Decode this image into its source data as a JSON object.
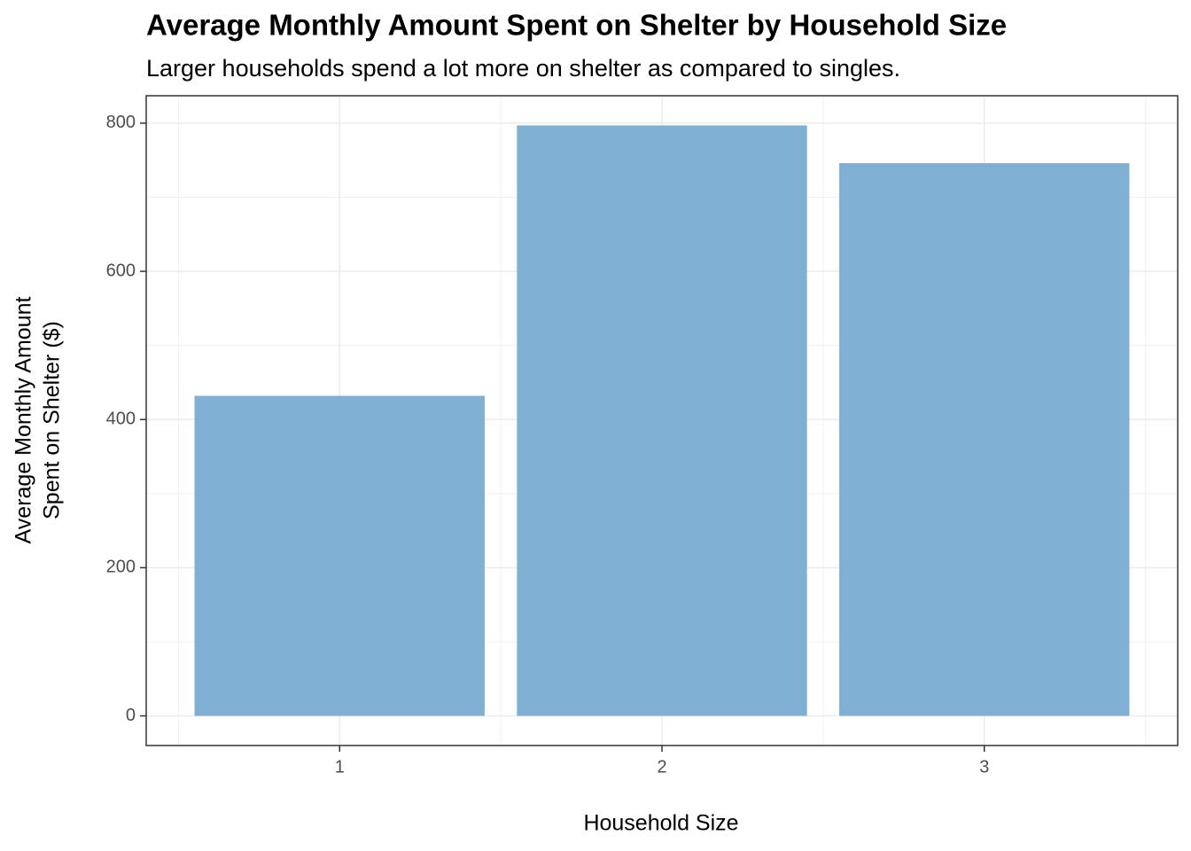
{
  "chart_data": {
    "type": "bar",
    "title": "Average Monthly Amount Spent on Shelter by Household Size",
    "subtitle": "Larger households spend a lot more on shelter as compared to singles.",
    "x_label": "Household Size",
    "y_label": [
      "Average Monthly Amount",
      "Spent on Shelter ($)"
    ],
    "categories": [
      "1",
      "2",
      "3"
    ],
    "values": [
      432,
      797,
      746
    ],
    "color": "#7fafd2",
    "ylim": [
      -40,
      837
    ],
    "yticks": [
      0,
      200,
      400,
      600,
      800
    ],
    "grid": true
  }
}
